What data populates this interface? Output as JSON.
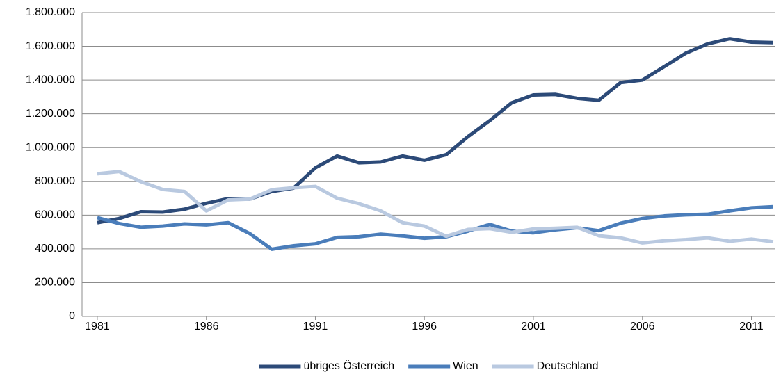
{
  "chart_data": {
    "type": "line",
    "x": [
      1981,
      1982,
      1983,
      1984,
      1985,
      1986,
      1987,
      1988,
      1989,
      1990,
      1991,
      1992,
      1993,
      1994,
      1995,
      1996,
      1997,
      1998,
      1999,
      2000,
      2001,
      2002,
      2003,
      2004,
      2005,
      2006,
      2007,
      2008,
      2009,
      2010,
      2011,
      2012
    ],
    "series": [
      {
        "name": "übriges Österreich",
        "color": "#2c4a78",
        "values": [
          555000,
          580000,
          620000,
          618000,
          635000,
          670000,
          698000,
          695000,
          740000,
          760000,
          880000,
          950000,
          910000,
          915000,
          950000,
          925000,
          958000,
          1065000,
          1160000,
          1265000,
          1312000,
          1315000,
          1292000,
          1280000,
          1385000,
          1400000,
          1480000,
          1560000,
          1615000,
          1645000,
          1625000,
          1622000
        ]
      },
      {
        "name": "Wien",
        "color": "#4a7dba",
        "values": [
          585000,
          550000,
          528000,
          535000,
          548000,
          542000,
          555000,
          490000,
          398000,
          418000,
          430000,
          468000,
          472000,
          487000,
          477000,
          463000,
          472000,
          505000,
          545000,
          505000,
          495000,
          513000,
          525000,
          508000,
          552000,
          580000,
          595000,
          602000,
          605000,
          625000,
          643000,
          650000
        ]
      },
      {
        "name": "Deutschland",
        "color": "#b9c9e0",
        "values": [
          845000,
          858000,
          798000,
          752000,
          740000,
          625000,
          690000,
          695000,
          750000,
          762000,
          770000,
          700000,
          668000,
          625000,
          555000,
          535000,
          475000,
          515000,
          520000,
          498000,
          518000,
          522000,
          528000,
          478000,
          465000,
          435000,
          448000,
          455000,
          465000,
          445000,
          458000,
          442000
        ]
      }
    ],
    "xlim": [
      1980.3,
      2012.1
    ],
    "xticks": [
      1981,
      1986,
      1991,
      1996,
      2001,
      2006,
      2011
    ],
    "ylim": [
      0,
      1800000
    ],
    "yticks": [
      0,
      {
        "value": 200000,
        "label": "200.000"
      },
      {
        "value": 400000,
        "label": "400.000"
      },
      {
        "value": 600000,
        "label": "600.000"
      },
      {
        "value": 800000,
        "label": "800.000"
      },
      {
        "value": 1000000,
        "label": "1.000.000"
      },
      {
        "value": 1200000,
        "label": "1.200.000"
      },
      {
        "value": 1400000,
        "label": "1.400.000"
      },
      {
        "value": 1600000,
        "label": "1.600.000"
      },
      {
        "value": 1800000,
        "label": "1.800.000"
      }
    ],
    "grid": true,
    "legend": "bottom"
  }
}
